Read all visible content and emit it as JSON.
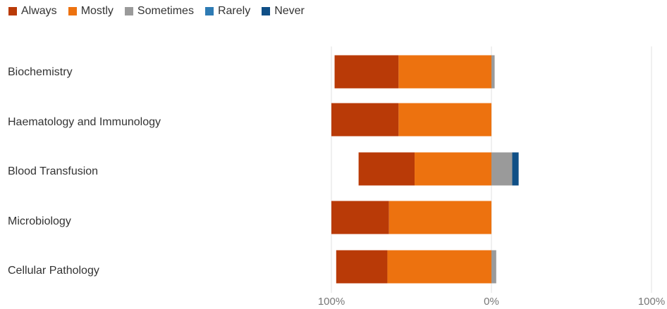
{
  "chart_data": {
    "type": "bar",
    "orientation": "horizontal",
    "stacking": "diverging",
    "title": "",
    "xlabel": "",
    "ylabel": "",
    "legend_position": "top-left",
    "grid": true,
    "xticks": [
      "100%",
      "0%",
      "100%"
    ],
    "categories": [
      "Biochemistry",
      "Haematology and Immunology",
      "Blood Transfusion",
      "Microbiology",
      "Cellular Pathology"
    ],
    "series": [
      {
        "name": "Always",
        "color": "#b93a07",
        "values": [
          40,
          42,
          35,
          36,
          32
        ],
        "side": "left"
      },
      {
        "name": "Mostly",
        "color": "#ed720f",
        "values": [
          58,
          58,
          48,
          64,
          65
        ],
        "side": "left"
      },
      {
        "name": "Sometimes",
        "color": "#9a9a9a",
        "values": [
          2,
          0,
          13,
          0,
          3
        ],
        "side": "right",
        "stack_order": 0
      },
      {
        "name": "Rarely",
        "color": "#2e7bb4",
        "values": [
          0,
          0,
          0,
          0,
          0
        ],
        "side": "right",
        "stack_order": 1
      },
      {
        "name": "Never",
        "color": "#0f4f86",
        "values": [
          0,
          0,
          4,
          0,
          0
        ],
        "side": "right",
        "stack_order": 2
      }
    ],
    "xlim": [
      -100,
      100
    ]
  }
}
